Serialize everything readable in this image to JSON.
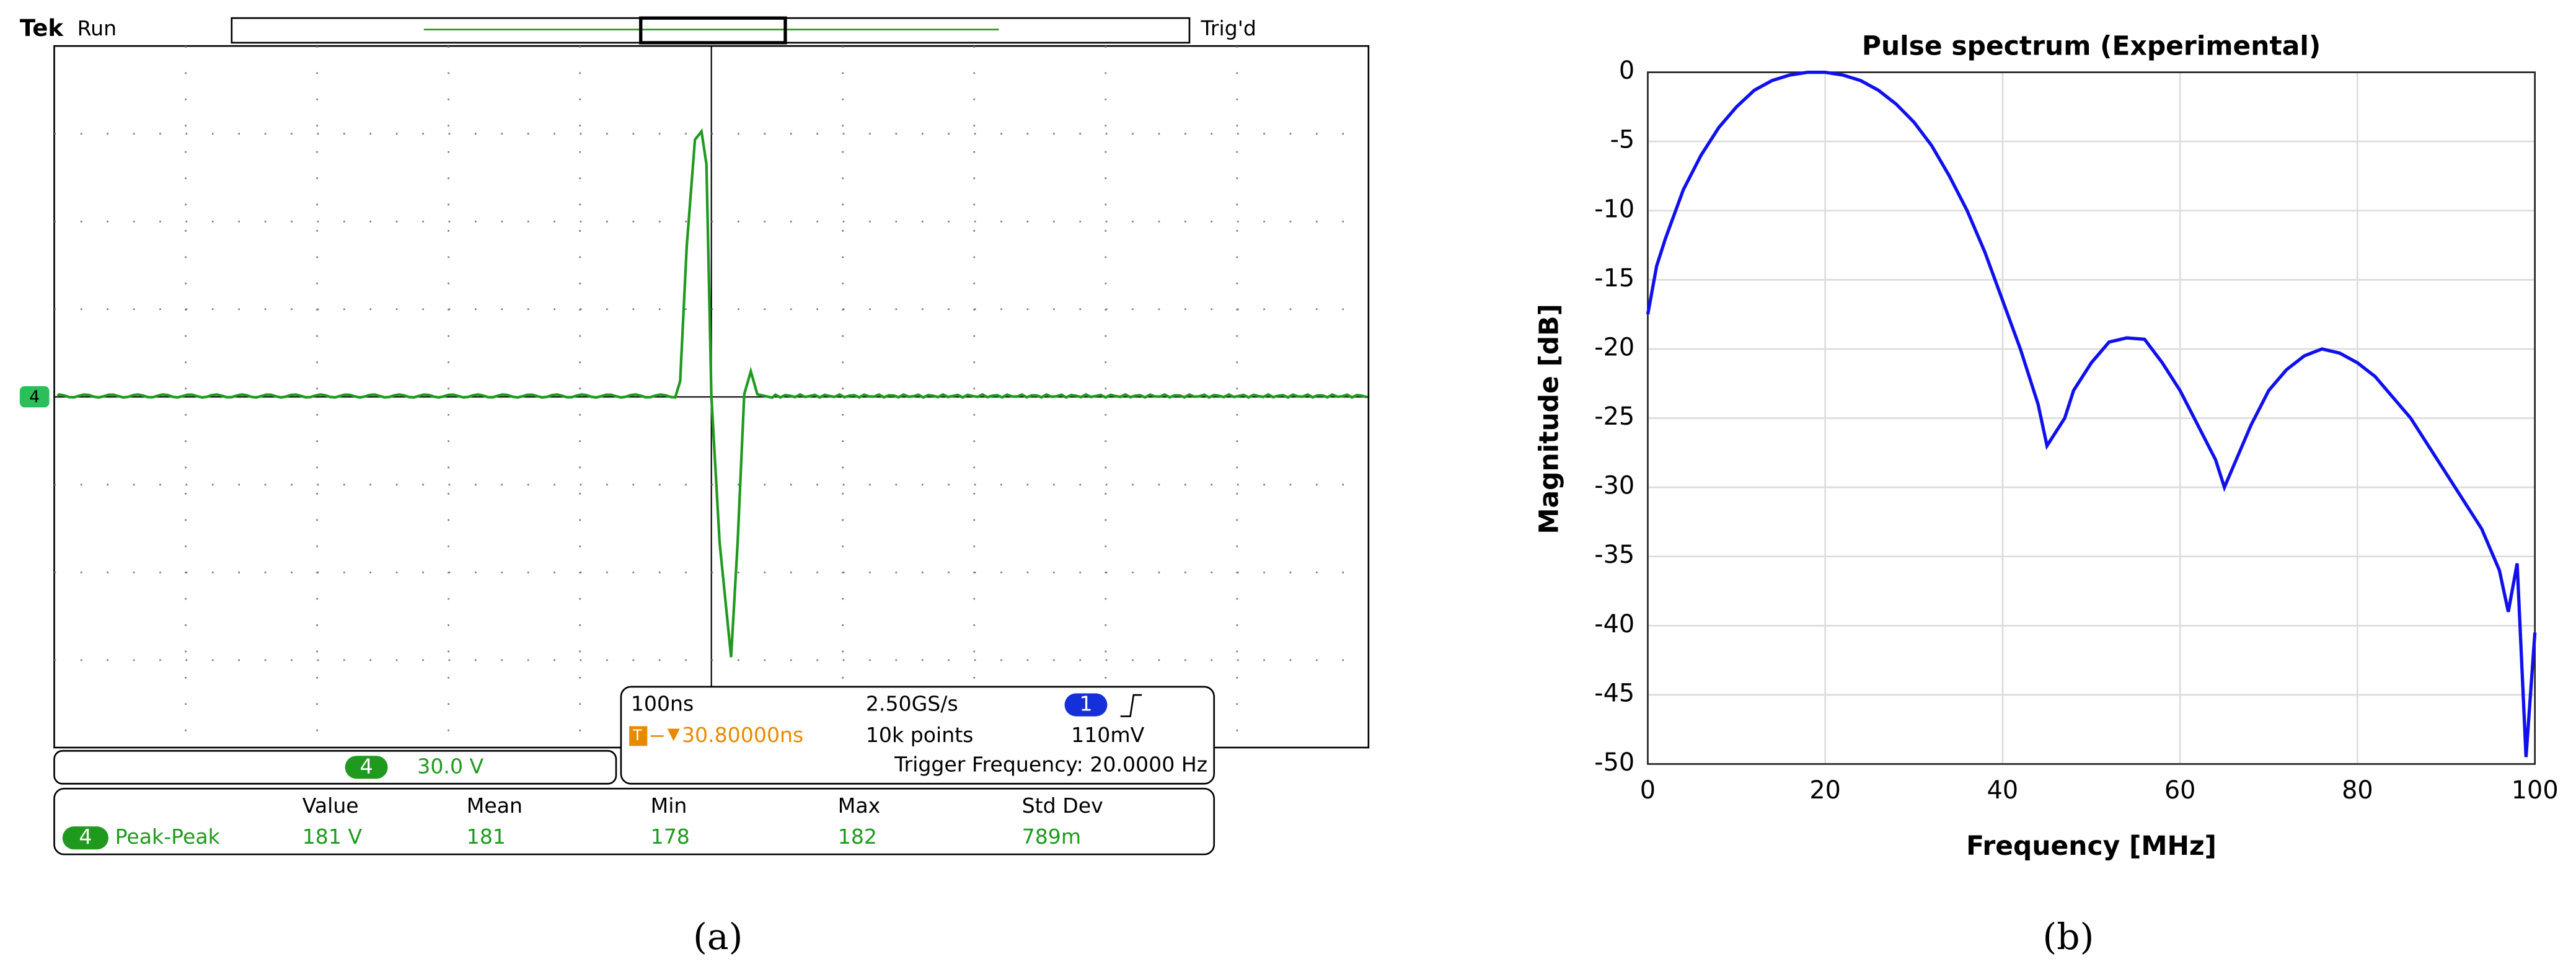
{
  "scope": {
    "brand": "Tek",
    "state": "Run",
    "trigger_state": "Trig'd",
    "trigger_marker": "T",
    "channel": "4",
    "timebase": "100ns",
    "sample_rate": "2.50GS/s",
    "record_length": "10k points",
    "trigger_channel": "1",
    "trigger_level": "110mV",
    "trigger_position": "30.80000ns",
    "trigger_frequency": "Trigger Frequency: 20.0000 Hz",
    "channel_scale": "30.0 V",
    "measurements": {
      "headers": [
        "Value",
        "Mean",
        "Min",
        "Max",
        "Std Dev"
      ],
      "rows": [
        {
          "channel": "4",
          "name": "Peak-Peak",
          "cells": [
            "181 V",
            "181",
            "178",
            "182",
            "789m"
          ]
        }
      ]
    }
  },
  "captions": [
    "(a)",
    "(b)"
  ],
  "chart_data": {
    "type": "line",
    "title": "Pulse spectrum (Experimental)",
    "x_label": "Frequency [MHz]",
    "y_label": "Magnitude [dB]",
    "x": [
      0,
      1,
      2,
      4,
      6,
      8,
      10,
      12,
      14,
      16,
      18,
      20,
      22,
      24,
      26,
      28,
      30,
      32,
      34,
      36,
      38,
      40,
      42,
      44,
      45,
      46,
      47,
      48,
      50,
      52,
      54,
      56,
      58,
      60,
      62,
      64,
      65,
      66,
      68,
      70,
      72,
      74,
      76,
      78,
      80,
      82,
      84,
      86,
      88,
      90,
      92,
      94,
      96,
      97,
      98,
      99,
      99.5,
      100
    ],
    "values": [
      -17.5,
      -14,
      -12,
      -8.5,
      -6,
      -4,
      -2.5,
      -1.3,
      -0.6,
      -0.2,
      0,
      0,
      -0.2,
      -0.6,
      -1.3,
      -2.3,
      -3.6,
      -5.3,
      -7.5,
      -10,
      -13,
      -16.5,
      -20,
      -24,
      -27,
      -26,
      -25,
      -23,
      -21,
      -19.5,
      -19.2,
      -19.3,
      -21,
      -23,
      -25.5,
      -28,
      -30,
      -28.5,
      -25.5,
      -23,
      -21.5,
      -20.5,
      -20,
      -20.3,
      -21,
      -22,
      -23.5,
      -25,
      -27,
      -29,
      -31,
      -33,
      -36,
      -39,
      -35.5,
      -49.5,
      -45,
      -40.5
    ],
    "color": "#1010ee",
    "xlim": [
      0,
      100
    ],
    "ylim": [
      -50,
      0
    ],
    "xticks": [
      0,
      20,
      40,
      60,
      80,
      100
    ],
    "yticks": [
      0,
      -5,
      -10,
      -15,
      -20,
      -25,
      -30,
      -35,
      -40,
      -45,
      -50
    ],
    "grid": true
  }
}
